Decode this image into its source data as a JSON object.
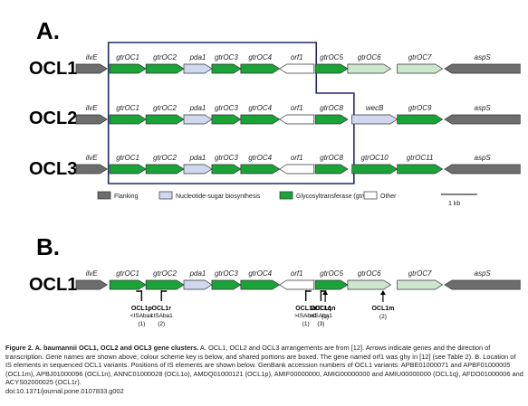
{
  "colors": {
    "flanking": "#6d6d6d",
    "nucleotide": "#cfd8ee",
    "glycosyl": "#1aa337",
    "other": "#ffffff",
    "box": "#1f2a6b",
    "stroke": "#333333",
    "pale_green": "#cde7cf"
  },
  "panelA": {
    "label": "A.",
    "tracks": [
      {
        "name": "OCL1",
        "genes": [
          {
            "label": "ilvE",
            "type": "flanking",
            "start": 0.0,
            "end": 0.72,
            "dir": 1
          },
          {
            "label": "gtrOC1",
            "type": "glycosyl",
            "start": 0.78,
            "end": 1.62,
            "dir": 1
          },
          {
            "label": "gtrOC2",
            "type": "glycosyl",
            "start": 1.62,
            "end": 2.5,
            "dir": 1
          },
          {
            "label": "pda1",
            "type": "nucleotide",
            "start": 2.5,
            "end": 3.15,
            "dir": 1
          },
          {
            "label": "gtrOC3",
            "type": "glycosyl",
            "start": 3.15,
            "end": 3.82,
            "dir": 1
          },
          {
            "label": "gtrOC4",
            "type": "glycosyl",
            "start": 3.82,
            "end": 4.72,
            "dir": 1
          },
          {
            "label": "orf1",
            "type": "other",
            "start": 4.72,
            "end": 5.52,
            "dir": -1
          },
          {
            "label": "gtrOC5",
            "type": "glycosyl",
            "start": 5.55,
            "end": 6.3,
            "dir": 1
          },
          {
            "label": "gtrOC6",
            "type": "pale",
            "start": 6.3,
            "end": 7.3,
            "dir": 1
          },
          {
            "label": "gtrOC7",
            "type": "pale",
            "start": 7.45,
            "end": 8.5,
            "dir": 1
          },
          {
            "label": "aspS",
            "type": "flanking",
            "start": 8.55,
            "end": 10.3,
            "dir": -1
          }
        ]
      },
      {
        "name": "OCL2",
        "genes": [
          {
            "label": "ilvE",
            "type": "flanking",
            "start": 0.0,
            "end": 0.72,
            "dir": 1
          },
          {
            "label": "gtrOC1",
            "type": "glycosyl",
            "start": 0.78,
            "end": 1.62,
            "dir": 1
          },
          {
            "label": "gtrOC2",
            "type": "glycosyl",
            "start": 1.62,
            "end": 2.5,
            "dir": 1
          },
          {
            "label": "pda1",
            "type": "nucleotide",
            "start": 2.5,
            "end": 3.15,
            "dir": 1
          },
          {
            "label": "gtrOC3",
            "type": "glycosyl",
            "start": 3.15,
            "end": 3.82,
            "dir": 1
          },
          {
            "label": "gtrOC4",
            "type": "glycosyl",
            "start": 3.82,
            "end": 4.72,
            "dir": 1
          },
          {
            "label": "orf1",
            "type": "other",
            "start": 4.72,
            "end": 5.52,
            "dir": -1
          },
          {
            "label": "gtrOC8",
            "type": "glycosyl",
            "start": 5.55,
            "end": 6.3,
            "dir": 1
          },
          {
            "label": "wecB",
            "type": "nucleotide",
            "start": 6.4,
            "end": 7.45,
            "dir": 1
          },
          {
            "label": "gtrOC9",
            "type": "glycosyl",
            "start": 7.45,
            "end": 8.5,
            "dir": 1
          },
          {
            "label": "aspS",
            "type": "flanking",
            "start": 8.55,
            "end": 10.3,
            "dir": -1
          }
        ]
      },
      {
        "name": "OCL3",
        "genes": [
          {
            "label": "ilvE",
            "type": "flanking",
            "start": 0.0,
            "end": 0.72,
            "dir": 1
          },
          {
            "label": "gtrOC1",
            "type": "glycosyl",
            "start": 0.78,
            "end": 1.62,
            "dir": 1
          },
          {
            "label": "gtrOC2",
            "type": "glycosyl",
            "start": 1.62,
            "end": 2.5,
            "dir": 1
          },
          {
            "label": "pda1",
            "type": "nucleotide",
            "start": 2.5,
            "end": 3.15,
            "dir": 1
          },
          {
            "label": "gtrOC3",
            "type": "glycosyl",
            "start": 3.15,
            "end": 3.82,
            "dir": 1
          },
          {
            "label": "gtrOC4",
            "type": "glycosyl",
            "start": 3.82,
            "end": 4.72,
            "dir": 1
          },
          {
            "label": "orf1",
            "type": "other",
            "start": 4.72,
            "end": 5.52,
            "dir": -1
          },
          {
            "label": "gtrOC8",
            "type": "glycosyl",
            "start": 5.55,
            "end": 6.3,
            "dir": 1
          },
          {
            "label": "gtrOC10",
            "type": "glycosyl",
            "start": 6.4,
            "end": 7.45,
            "dir": 1
          },
          {
            "label": "gtrOC11",
            "type": "glycosyl",
            "start": 7.45,
            "end": 8.5,
            "dir": 1
          },
          {
            "label": "aspS",
            "type": "flanking",
            "start": 8.55,
            "end": 10.3,
            "dir": -1
          }
        ]
      }
    ],
    "legend": [
      {
        "type": "flanking",
        "label": "Flanking"
      },
      {
        "type": "nucleotide",
        "label": "Nucleotide-sugar biosynthesis"
      },
      {
        "type": "glycosyl",
        "label": "Glycosyltransferase (gtrOC)"
      },
      {
        "type": "other",
        "label": "Other"
      }
    ],
    "scale_label": "1 kb"
  },
  "panelB": {
    "label": "B.",
    "track": {
      "name": "OCL1",
      "genes": [
        {
          "label": "ilvE",
          "type": "flanking",
          "start": 0.0,
          "end": 0.72,
          "dir": 1
        },
        {
          "label": "gtrOC1",
          "type": "glycosyl",
          "start": 0.78,
          "end": 1.62,
          "dir": 1
        },
        {
          "label": "gtrOC2",
          "type": "glycosyl",
          "start": 1.62,
          "end": 2.5,
          "dir": 1
        },
        {
          "label": "pda1",
          "type": "nucleotide",
          "start": 2.5,
          "end": 3.15,
          "dir": 1
        },
        {
          "label": "gtrOC3",
          "type": "glycosyl",
          "start": 3.15,
          "end": 3.82,
          "dir": 1
        },
        {
          "label": "gtrOC4",
          "type": "glycosyl",
          "start": 3.82,
          "end": 4.72,
          "dir": 1
        },
        {
          "label": "orf1",
          "type": "other",
          "start": 4.72,
          "end": 5.52,
          "dir": -1
        },
        {
          "label": "gtrOC5",
          "type": "glycosyl",
          "start": 5.55,
          "end": 6.3,
          "dir": 1
        },
        {
          "label": "gtrOC6",
          "type": "pale",
          "start": 6.3,
          "end": 7.3,
          "dir": 1
        },
        {
          "label": "gtrOC7",
          "type": "pale",
          "start": 7.45,
          "end": 8.5,
          "dir": 1
        },
        {
          "label": "aspS",
          "type": "flanking",
          "start": 8.55,
          "end": 10.3,
          "dir": -1
        }
      ]
    },
    "insertions": [
      {
        "name": "OCL1p",
        "sub": "<ISAba1",
        "num": "(1)",
        "pos": 1.52,
        "kind": "flag-left"
      },
      {
        "name": "OCL1r",
        "sub": "<ISAba1",
        "num": "(2)",
        "pos": 1.98,
        "kind": "flag-right"
      },
      {
        "name": "OCL1o",
        "sub": ">ISAba1",
        "num": "(1)",
        "pos": 5.33,
        "kind": "flag-right"
      },
      {
        "name": "OCL1q",
        "sub": ">ISAba1",
        "num": "(3)",
        "pos": 5.68,
        "kind": "flag-right"
      },
      {
        "name": "OCL1n",
        "sub": "",
        "num": "(1)",
        "pos": 5.78,
        "kind": "arrow"
      },
      {
        "name": "OCL1m",
        "sub": "",
        "num": "(2)",
        "pos": 7.12,
        "kind": "arrow"
      }
    ]
  },
  "caption": {
    "title": "Figure 2. A. baumannii OCL1, OCL2 and OCL3 gene clusters.",
    "body": " A. OCL1, OCL2 and OCL3 arrangements are from [12]. Arrows indicate genes and the direction of transcription. Gene names are shown above, colour scheme key is below, and shared portions are boxed. The gene named orf1 was ghy in [12] (see Table 2). B. Location of IS elements in sequenced OCL1 variants. Positions of IS elements are shown below. GenBank accession numbers of OCL1 variants: APBE01000071 and APBF01000005 (OCL1m), APBJ01000096 (OCL1n), ANNC01000028 (OCL1o), AMDQ01000121 (OCL1p), AMIF00000000, AMIG00000000 and AMIU00000000 (OCL1q), AFDO01000006 and ACYS02000025 (OCL1r).",
    "doi": "doi:10.1371/journal.pone.0107833.g002"
  }
}
